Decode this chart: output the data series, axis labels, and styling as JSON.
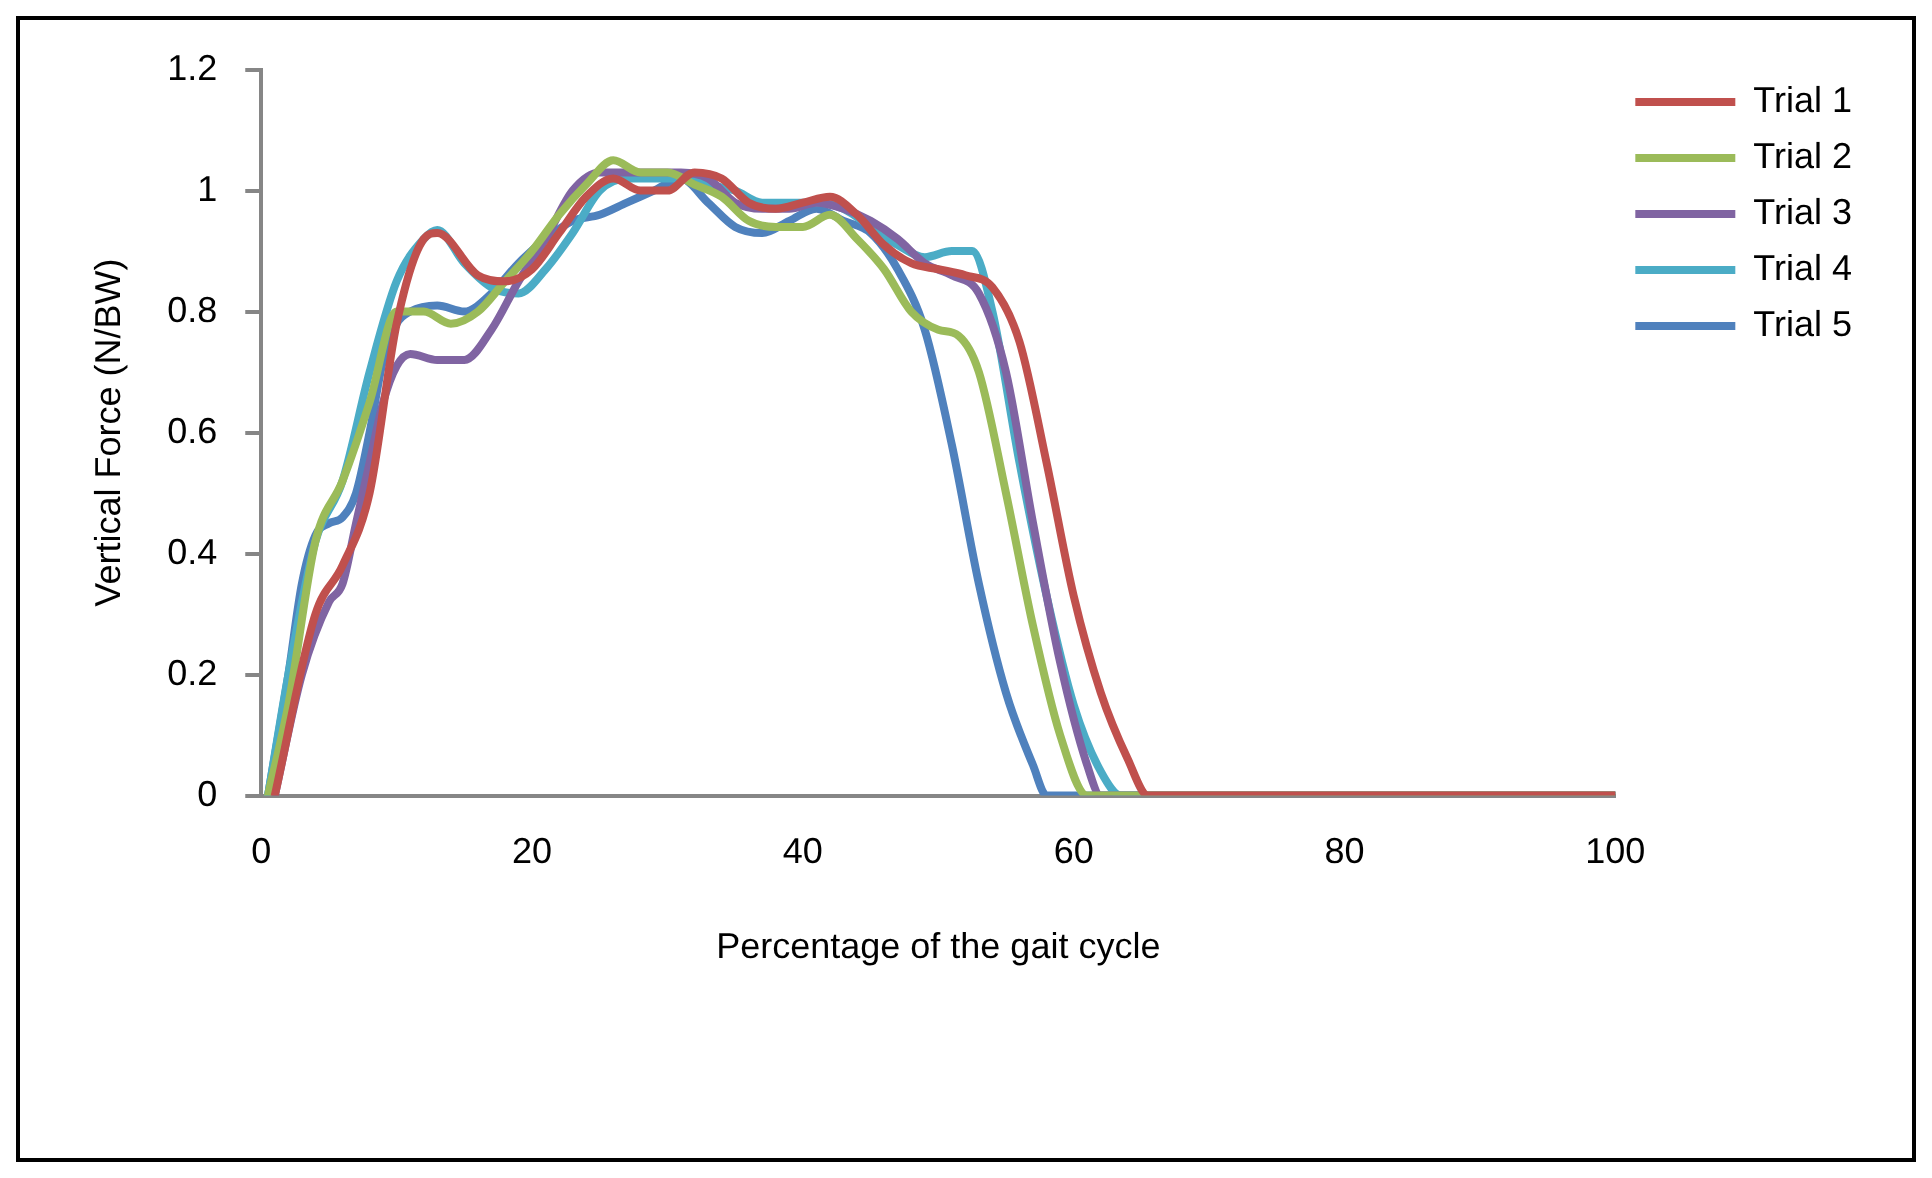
{
  "chart_data": {
    "type": "line",
    "xlabel": "Percentage of the gait cycle",
    "ylabel": "Vertical Force (N/BW)",
    "xlim": [
      0,
      100
    ],
    "xticks": [
      0,
      20,
      40,
      60,
      80,
      100
    ],
    "ylim": [
      0,
      1.2
    ],
    "yticks": [
      0,
      0.2,
      0.4,
      0.6,
      0.8,
      1,
      1.2
    ],
    "grid": false,
    "legend": "top right",
    "marker": "none",
    "line_style": "solid",
    "series": [
      {
        "name": "Trial 1",
        "color": "#c0504d",
        "x": [
          1,
          4,
          6,
          8,
          10,
          12,
          13,
          16,
          18,
          20,
          22,
          24,
          26,
          28,
          30,
          32,
          34,
          36,
          38,
          40,
          42,
          44,
          46,
          48,
          50,
          52,
          54,
          56,
          58,
          60,
          62,
          64,
          65.5,
          100
        ],
        "values": [
          0,
          0.3,
          0.38,
          0.5,
          0.78,
          0.92,
          0.93,
          0.86,
          0.85,
          0.87,
          0.93,
          0.99,
          1.02,
          1,
          1,
          1.03,
          1.02,
          0.98,
          0.97,
          0.98,
          0.99,
          0.96,
          0.91,
          0.88,
          0.87,
          0.86,
          0.84,
          0.75,
          0.55,
          0.33,
          0.17,
          0.06,
          0,
          0
        ]
      },
      {
        "name": "Trial 2",
        "color": "#9bbb59",
        "x": [
          0.5,
          2,
          4,
          6,
          8,
          10,
          12,
          14,
          16,
          18,
          20,
          22,
          24,
          26,
          28,
          30,
          32,
          34,
          36,
          38,
          40,
          42,
          44,
          46,
          48,
          50,
          51.5,
          53,
          55,
          57,
          59,
          61,
          100
        ],
        "values": [
          0,
          0.15,
          0.42,
          0.52,
          0.65,
          0.8,
          0.8,
          0.78,
          0.8,
          0.85,
          0.9,
          0.96,
          1.01,
          1.05,
          1.03,
          1.03,
          1.01,
          0.99,
          0.95,
          0.94,
          0.94,
          0.96,
          0.92,
          0.87,
          0.8,
          0.77,
          0.76,
          0.7,
          0.5,
          0.28,
          0.1,
          0,
          0
        ]
      },
      {
        "name": "Trial 3",
        "color": "#8064a2",
        "x": [
          1,
          3,
          5,
          6,
          7,
          8,
          9,
          10,
          11,
          13,
          15,
          17,
          19,
          21,
          23,
          25,
          27,
          29,
          31,
          33,
          35,
          37,
          39,
          41,
          43,
          45,
          47,
          49,
          51,
          53,
          55,
          57,
          59,
          61,
          62,
          100
        ],
        "values": [
          0,
          0.2,
          0.32,
          0.35,
          0.45,
          0.55,
          0.65,
          0.71,
          0.73,
          0.72,
          0.72,
          0.77,
          0.85,
          0.92,
          1,
          1.03,
          1.03,
          1.03,
          1.03,
          1.02,
          0.98,
          0.97,
          0.97,
          0.98,
          0.97,
          0.95,
          0.92,
          0.88,
          0.86,
          0.83,
          0.7,
          0.45,
          0.22,
          0.05,
          0,
          0
        ]
      },
      {
        "name": "Trial 4",
        "color": "#4bacc6",
        "x": [
          0.5,
          2,
          4,
          6,
          8,
          10,
          12,
          13,
          15,
          17,
          19,
          21,
          23,
          25,
          27,
          29,
          31,
          33,
          35,
          37,
          39,
          41,
          43,
          45,
          47,
          49,
          51,
          52.5,
          54,
          56,
          58,
          60,
          62,
          63.5,
          100
        ],
        "values": [
          0,
          0.2,
          0.42,
          0.52,
          0.7,
          0.85,
          0.92,
          0.935,
          0.88,
          0.84,
          0.83,
          0.87,
          0.93,
          1,
          1.02,
          1.02,
          1.02,
          1.01,
          1,
          0.98,
          0.98,
          0.98,
          0.97,
          0.94,
          0.91,
          0.89,
          0.9,
          0.9,
          0.8,
          0.55,
          0.33,
          0.15,
          0.04,
          0,
          0
        ]
      },
      {
        "name": "Trial 5",
        "color": "#4f81bd",
        "x": [
          0.5,
          2,
          3,
          4,
          5,
          6,
          7,
          8,
          9,
          10,
          11,
          13,
          15,
          17,
          19,
          21,
          23,
          25,
          27,
          29,
          31,
          33,
          35,
          37,
          39,
          41,
          43,
          45,
          47,
          49,
          51,
          53,
          55,
          57,
          58,
          100
        ],
        "values": [
          0,
          0.2,
          0.35,
          0.43,
          0.45,
          0.46,
          0.5,
          0.6,
          0.72,
          0.78,
          0.8,
          0.81,
          0.8,
          0.83,
          0.88,
          0.92,
          0.95,
          0.96,
          0.98,
          1,
          1.02,
          0.98,
          0.94,
          0.93,
          0.95,
          0.97,
          0.95,
          0.93,
          0.87,
          0.77,
          0.58,
          0.35,
          0.17,
          0.05,
          0,
          0
        ]
      }
    ]
  }
}
